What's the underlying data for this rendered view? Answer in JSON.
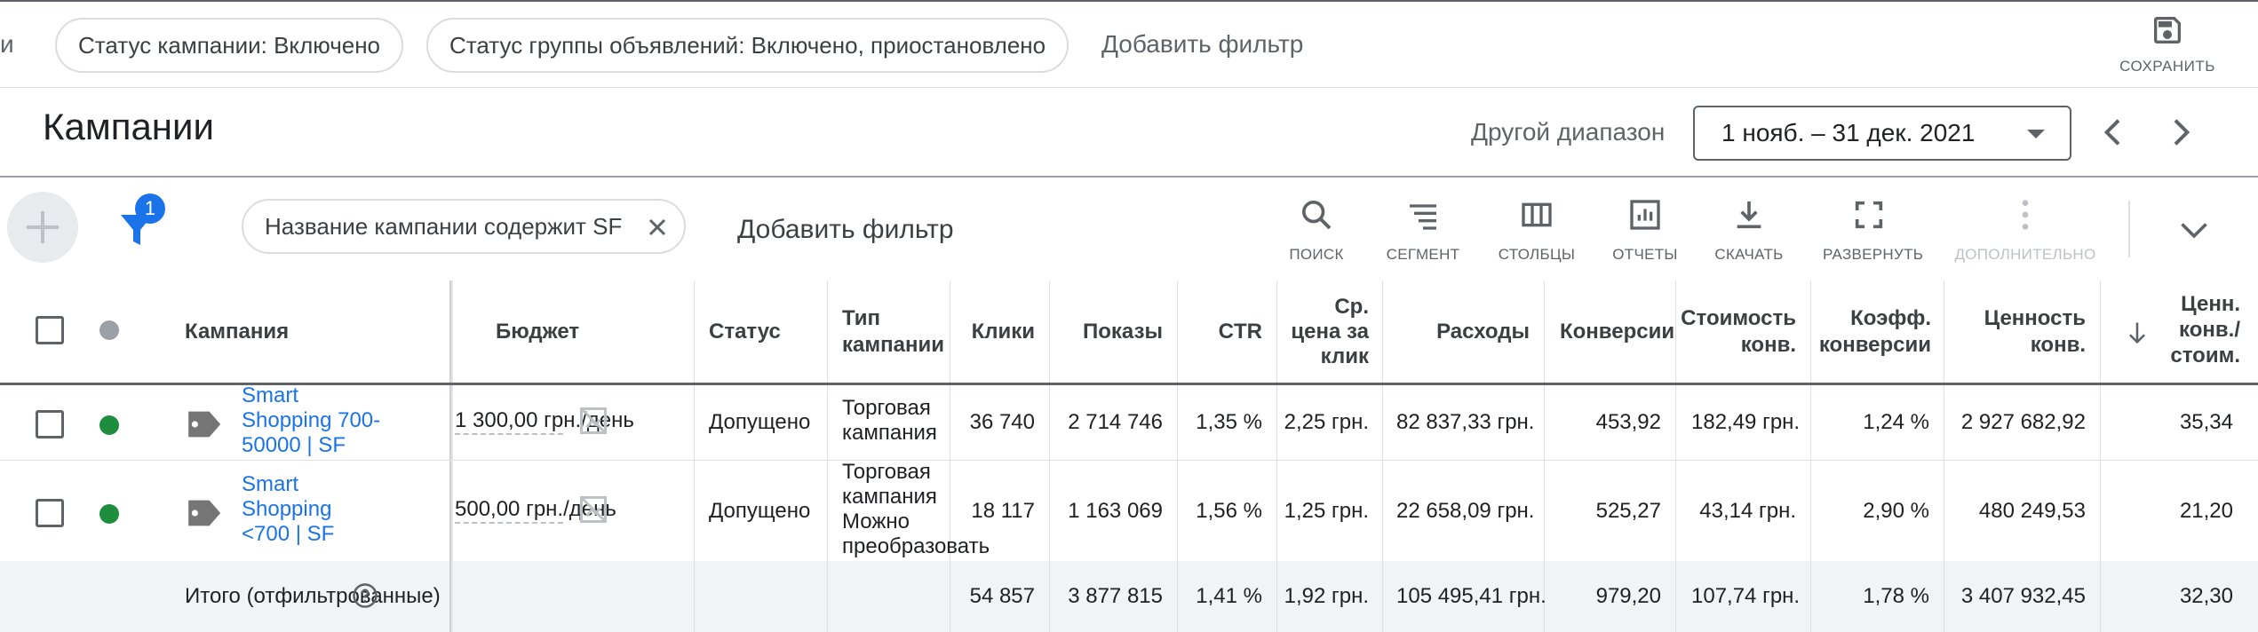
{
  "filters_bar": {
    "partial_left_text": "и",
    "chips": [
      "Статус кампании: Включено",
      "Статус группы объявлений: Включено, приостановлено"
    ],
    "add_filter": "Добавить фильтр",
    "save_label": "СОХРАНИТЬ"
  },
  "header": {
    "title": "Кампании",
    "range_label": "Другой диапазон",
    "date_range": "1 нояб. – 31 дек. 2021"
  },
  "toolbar": {
    "filter_count": "1",
    "active_filter": "Название кампании содержит SF",
    "add_filter": "Добавить фильтр",
    "tools": {
      "search": "ПОИСК",
      "segment": "СЕГМЕНТ",
      "columns": "СТОЛБЦЫ",
      "reports": "ОТЧЕТЫ",
      "download": "СКАЧАТЬ",
      "expand": "РАЗВЕРНУТЬ",
      "more": "ДОПОЛНИТЕЛЬНО"
    }
  },
  "table": {
    "headers": {
      "campaign": "Кампания",
      "budget": "Бюджет",
      "status": "Статус",
      "type_l1": "Тип",
      "type_l2": "кампании",
      "clicks": "Клики",
      "impressions": "Показы",
      "ctr": "CTR",
      "cpc_l1": "Ср.",
      "cpc_l2": "цена за",
      "cpc_l3": "клик",
      "cost": "Расходы",
      "conversions": "Конверсии",
      "cost_conv_l1": "Стоимость",
      "cost_conv_l2": "конв.",
      "conv_rate_l1": "Коэфф.",
      "conv_rate_l2": "конверсии",
      "conv_value_l1": "Ценность",
      "conv_value_l2": "конв.",
      "value_cost_l1": "Ценн.",
      "value_cost_l2": "конв./",
      "value_cost_l3": "стоим."
    },
    "rows": [
      {
        "status_color": "#1e8e3e",
        "campaign_l1": "Smart",
        "campaign_l2": "Shopping 700-",
        "campaign_l3": "50000 | SF",
        "budget": "1 300,00 грн./день",
        "status": "Допущено",
        "type_l1": "Торговая",
        "type_l2": "кампания",
        "type_l3": "",
        "type_l4": "",
        "clicks": "36 740",
        "impressions": "2 714 746",
        "ctr": "1,35 %",
        "cpc": "2,25 грн.",
        "cost": "82 837,33 грн.",
        "conversions": "453,92",
        "cost_conv": "182,49 грн.",
        "conv_rate": "1,24 %",
        "conv_value": "2 927 682,92",
        "value_cost": "35,34"
      },
      {
        "status_color": "#1e8e3e",
        "campaign_l1": "Smart",
        "campaign_l2": "Shopping",
        "campaign_l3": "<700 | SF",
        "budget": "500,00 грн./день",
        "status": "Допущено",
        "type_l1": "Торговая",
        "type_l2": "кампания",
        "type_l3": "Можно",
        "type_l4": "преобразовать",
        "clicks": "18 117",
        "impressions": "1 163 069",
        "ctr": "1,56 %",
        "cpc": "1,25 грн.",
        "cost": "22 658,09 грн.",
        "conversions": "525,27",
        "cost_conv": "43,14 грн.",
        "conv_rate": "2,90 %",
        "conv_value": "480 249,53",
        "value_cost": "21,20"
      }
    ],
    "total": {
      "label": "Итого (отфильтрованные)",
      "clicks": "54 857",
      "impressions": "3 877 815",
      "ctr": "1,41 %",
      "cpc": "1,92 грн.",
      "cost": "105 495,41 грн.",
      "conversions": "979,20",
      "cost_conv": "107,74 грн.",
      "conv_rate": "1,78 %",
      "conv_value": "3 407 932,45",
      "value_cost": "32,30"
    }
  }
}
